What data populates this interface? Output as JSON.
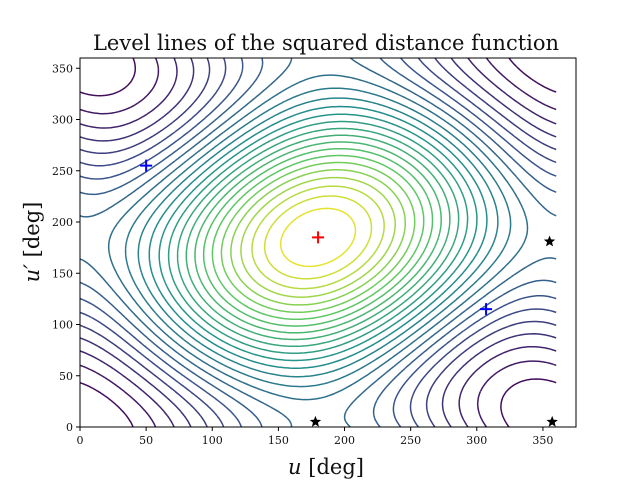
{
  "chart_data": {
    "type": "contour",
    "title": "Level lines of the squared distance function",
    "xlabel_var": "u",
    "xlabel_unit": " [deg]",
    "ylabel_var": "u′",
    "ylabel_unit": " [deg]",
    "xlim": [
      0,
      375
    ],
    "ylim": [
      0,
      360
    ],
    "xticks": [
      0,
      50,
      100,
      150,
      200,
      250,
      300,
      350
    ],
    "yticks": [
      0,
      50,
      100,
      150,
      200,
      250,
      300,
      350
    ],
    "colormap": [
      "#440154",
      "#3b528b",
      "#21918c",
      "#5ec962",
      "#fde725"
    ],
    "contour_levels": 26,
    "contour_center": {
      "u": 180,
      "u_prime": 185
    },
    "markers": [
      {
        "name": "max-center",
        "symbol": "+",
        "color": "#ff0000",
        "u": 180,
        "u_prime": 185
      },
      {
        "name": "min-upper-left",
        "symbol": "+",
        "color": "#0000ff",
        "u": 50,
        "u_prime": 255
      },
      {
        "name": "min-lower-right",
        "symbol": "+",
        "color": "#0000ff",
        "u": 307,
        "u_prime": 115
      },
      {
        "name": "saddle-right-mid",
        "symbol": "★",
        "color": "#000000",
        "u": 355,
        "u_prime": 181
      },
      {
        "name": "saddle-bottom-center",
        "symbol": "★",
        "color": "#000000",
        "u": 178,
        "u_prime": 5
      },
      {
        "name": "saddle-bottom-right",
        "symbol": "★",
        "color": "#000000",
        "u": 357,
        "u_prime": 5
      }
    ]
  }
}
